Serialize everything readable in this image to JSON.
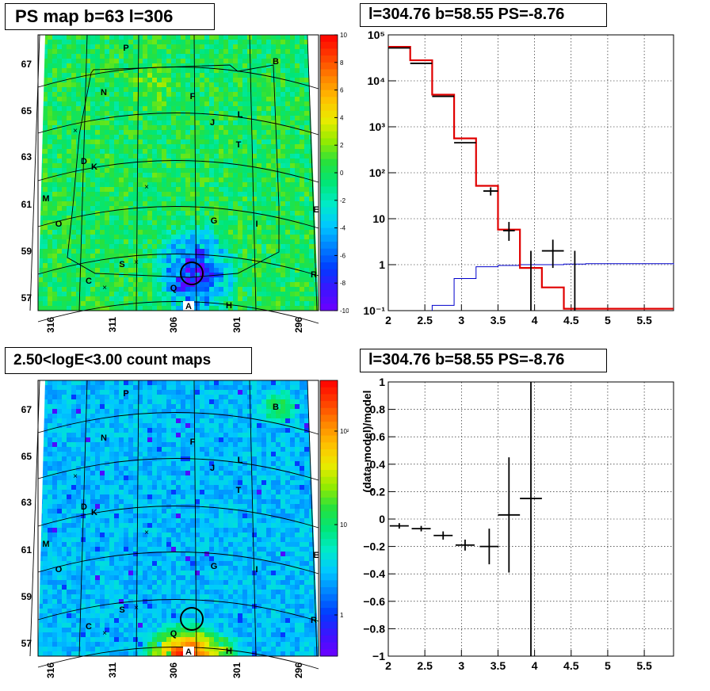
{
  "panels": {
    "ps_map": {
      "title": "PS map b=63 l=306"
    },
    "spectrum": {
      "title": "l=304.76 b=58.55 PS=-8.76"
    },
    "count_map": {
      "title": "2.50<logE<3.00 count maps"
    },
    "residual": {
      "title": "l=304.76 b=58.55 PS=-8.76"
    }
  },
  "colors": {
    "data": "#000000",
    "model": "#e00000",
    "source": "#0000cc",
    "grid": "#000000"
  },
  "map_common": {
    "lat_labels": [
      "67",
      "65",
      "63",
      "61",
      "59",
      "57"
    ],
    "lon_labels": [
      "316",
      "311",
      "306",
      "301",
      "296"
    ],
    "source_labels": [
      "P",
      "B",
      "N",
      "F",
      "L",
      "J",
      "T",
      "D",
      "K",
      "M",
      "G",
      "I",
      "E",
      "O",
      "S",
      "R",
      "C",
      "Q",
      "A",
      "H"
    ]
  },
  "ps_colorbar": {
    "labels": [
      "10",
      "8",
      "6",
      "4",
      "2",
      "0",
      "-2",
      "-4",
      "-6",
      "-8",
      "-10"
    ],
    "range": [
      -10,
      10
    ]
  },
  "count_colorbar": {
    "labels": [
      "10²",
      "10",
      "1"
    ],
    "scale": "log"
  },
  "chart_data": [
    {
      "type": "line",
      "title": "l=304.76 b=58.55 PS=-8.76",
      "xlabel": "",
      "ylabel": "",
      "xlim": [
        2.0,
        5.9
      ],
      "ylim": [
        0.1,
        100000
      ],
      "yscale": "log",
      "x_ticks": [
        "2",
        "2.5",
        "3",
        "3.5",
        "4",
        "4.5",
        "5",
        "5.5"
      ],
      "y_ticks": [
        "10⁵",
        "10⁴",
        "10³",
        "10²",
        "10",
        "1",
        "10⁻¹"
      ],
      "grid": true,
      "series": [
        {
          "kind": "data_points",
          "points": [
            {
              "x": 2.15,
              "y": 52000,
              "xerr": 0.15
            },
            {
              "x": 2.45,
              "y": 24000,
              "xerr": 0.15
            },
            {
              "x": 2.75,
              "y": 4600,
              "xerr": 0.15
            },
            {
              "x": 3.05,
              "y": 450,
              "xerr": 0.15
            },
            {
              "x": 3.4,
              "y": 40,
              "xerr": 0.1,
              "ylo": 32,
              "yhi": 48
            },
            {
              "x": 3.65,
              "y": 5.5,
              "xerr": 0.08,
              "ylo": 3.3,
              "yhi": 8.5
            },
            {
              "x": 3.95,
              "y": 0.5,
              "xerr": 0.0,
              "ylo": 0.1,
              "yhi": 2.0
            },
            {
              "x": 4.25,
              "y": 2.0,
              "xerr": 0.15,
              "ylo": 0.85,
              "yhi": 3.5
            },
            {
              "x": 4.55,
              "y": 1.0,
              "xerr": 0.0,
              "ylo": 0.1,
              "yhi": 2.0
            }
          ]
        },
        {
          "kind": "model_step",
          "edges": [
            2.0,
            2.3,
            2.6,
            2.9,
            3.2,
            3.5,
            3.8,
            4.1,
            4.4,
            5.9
          ],
          "values": [
            55000,
            28000,
            5000,
            560,
            52,
            5.8,
            0.85,
            0.32,
            0.11
          ]
        },
        {
          "kind": "source_step",
          "edges": [
            2.6,
            2.9,
            3.2,
            3.5,
            3.8,
            4.1,
            4.4,
            4.7,
            5.9
          ],
          "values": [
            0.13,
            0.5,
            0.9,
            0.96,
            1.0,
            1.0,
            1.03,
            1.05,
            1.0
          ]
        }
      ]
    },
    {
      "type": "scatter",
      "title": "l=304.76 b=58.55 PS=-8.76",
      "xlabel": "",
      "ylabel": "(data-model)/model",
      "xlim": [
        2.0,
        5.9
      ],
      "ylim": [
        -1,
        1
      ],
      "x_ticks": [
        "2",
        "2.5",
        "3",
        "3.5",
        "4",
        "4.5",
        "5",
        "5.5"
      ],
      "y_ticks": [
        "1",
        "0.8",
        "0.6",
        "0.4",
        "0.2",
        "0",
        "−0.2",
        "−0.4",
        "−0.6",
        "−0.8",
        "−1"
      ],
      "grid": true,
      "points": [
        {
          "x": 2.15,
          "y": -0.05,
          "xerr": 0.13,
          "yerr": 0.02
        },
        {
          "x": 2.45,
          "y": -0.07,
          "xerr": 0.13,
          "yerr": 0.02
        },
        {
          "x": 2.75,
          "y": -0.12,
          "xerr": 0.13,
          "yerr": 0.03
        },
        {
          "x": 3.05,
          "y": -0.19,
          "xerr": 0.13,
          "yerr": 0.04
        },
        {
          "x": 3.38,
          "y": -0.2,
          "xerr": 0.13,
          "yerr": 0.13
        },
        {
          "x": 3.65,
          "y": 0.03,
          "xerr": 0.15,
          "yerr": 0.42
        },
        {
          "x": 3.95,
          "y": 0.15,
          "xerr": 0.15,
          "ylo": -1.0,
          "yhi": 1.0
        }
      ]
    }
  ]
}
